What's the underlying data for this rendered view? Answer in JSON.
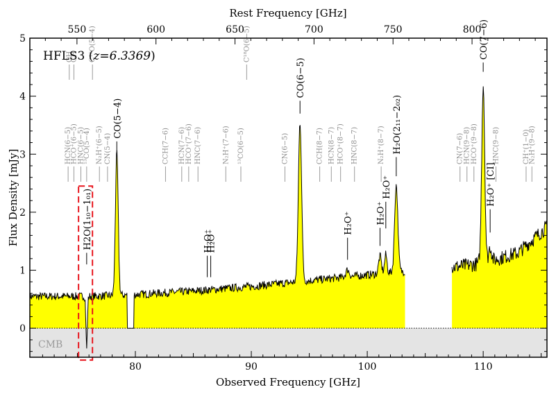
{
  "chart_data": {
    "type": "line",
    "title": "HFLS3 (z=6.3369)",
    "title_name": "HFLS3",
    "title_z": "z=6.3369",
    "xlabel": "Observed Frequency [GHz]",
    "ylabel": "Flux Density [mJy]",
    "x2label": "Rest Frequency [GHz]",
    "xlim": [
      70.9,
      115.5
    ],
    "ylim": [
      -0.5,
      5
    ],
    "redshift": 6.3369,
    "x_ticks": [
      80,
      90,
      100,
      110
    ],
    "y_ticks": [
      0,
      1,
      2,
      3,
      4,
      5
    ],
    "rest_ticks": [
      550,
      600,
      650,
      700,
      750,
      800
    ],
    "cmb_label": "CMB",
    "gap": [
      103.3,
      107.3
    ],
    "fill_color": "#ffff00",
    "cmb_color": "#e4e4e4",
    "highlight_color": "#e8141c",
    "highlight_box": {
      "x": [
        75.1,
        76.3
      ],
      "y": [
        -0.55,
        2.45
      ]
    },
    "continuum": {
      "x": [
        71.0,
        76.0,
        79.0,
        80.0,
        85.0,
        90.0,
        92.0,
        95.0,
        100.0,
        103.2,
        107.3,
        110.0,
        113.0,
        115.5
      ],
      "y": [
        0.55,
        0.55,
        0.57,
        0.58,
        0.64,
        0.72,
        0.76,
        0.82,
        0.92,
        0.98,
        1.05,
        1.12,
        1.3,
        1.75
      ]
    },
    "noise": 0.07,
    "peaks": [
      {
        "label": "CO(5-4)",
        "center": 78.4,
        "width": 0.12,
        "amp": 2.45
      },
      {
        "label": "CO(6-5)",
        "center": 94.2,
        "width": 0.14,
        "amp": 2.75
      },
      {
        "label": "H2O+",
        "center": 98.3,
        "width": 0.15,
        "amp": 0.12
      },
      {
        "label": "H2O+",
        "center": 101.1,
        "width": 0.12,
        "amp": 0.3
      },
      {
        "label": "H2O+",
        "center": 101.6,
        "width": 0.1,
        "amp": 0.32
      },
      {
        "label": "H2O(211-202)",
        "center": 102.5,
        "width": 0.14,
        "amp": 1.5
      },
      {
        "label": "CO(7-6)",
        "center": 110.0,
        "width": 0.13,
        "amp": 3.1
      },
      {
        "label": "[CI]",
        "center": 110.6,
        "width": 0.12,
        "amp": 0.25
      },
      {
        "label": "H2O(110-101)",
        "center": 75.8,
        "width": 0.06,
        "amp": -0.9
      }
    ],
    "blank_regions": [
      [
        79.3,
        79.9
      ]
    ],
    "dark_lines": [
      {
        "x": 75.8,
        "label": "H2O(1₁₀−1₀₁)",
        "tip": 1.1,
        "top": 1.3
      },
      {
        "x": 78.4,
        "label": "CO(5−4)",
        "tip": 3.05,
        "top": 3.22
      },
      {
        "x": 86.2,
        "label": "H₂O⁺",
        "tip": 0.88,
        "top": 1.25
      },
      {
        "x": 86.5,
        "label": "H₂O⁺",
        "tip": 0.88,
        "top": 1.25
      },
      {
        "x": 94.2,
        "label": "CO(6−5)",
        "tip": 3.7,
        "top": 3.92
      },
      {
        "x": 98.3,
        "label": "H₂O⁺",
        "tip": 1.18,
        "top": 1.56
      },
      {
        "x": 101.1,
        "label": "H₂O⁺",
        "tip": 1.42,
        "top": 1.73
      },
      {
        "x": 101.6,
        "label": "H₂O⁺",
        "tip": 1.72,
        "top": 2.18
      },
      {
        "x": 102.5,
        "label": "H₂O(2₁₁−2₀₂)",
        "tip": 2.62,
        "top": 2.95
      },
      {
        "x": 110.0,
        "label": "CO(7−6)",
        "tip": 4.42,
        "top": 4.58
      },
      {
        "x": 110.6,
        "label": "H₂O⁺ [CI]",
        "tip": 1.65,
        "top": 2.05
      }
    ],
    "grey_lines": [
      {
        "x": 74.2,
        "label": "HCN(6−5)"
      },
      {
        "x": 74.7,
        "label": "HCO⁺(6−5)"
      },
      {
        "x": 75.3,
        "label": "HNC(6−5)"
      },
      {
        "x": 75.8,
        "label": "¹³CO(5−4)"
      },
      {
        "x": 76.9,
        "label": "N₂H⁺(6−5)"
      },
      {
        "x": 77.6,
        "label": "CN(5−4)"
      },
      {
        "x": 74.3,
        "label": "CH",
        "top_group": true
      },
      {
        "x": 74.7,
        "label": "CH",
        "top_group": true
      },
      {
        "x": 76.3,
        "label": "C¹⁸O(5−4)",
        "top_group": true
      },
      {
        "x": 82.6,
        "label": "CCH(7−6)"
      },
      {
        "x": 84.0,
        "label": "HCN(7−6)"
      },
      {
        "x": 84.6,
        "label": "HCO⁺(7−6)"
      },
      {
        "x": 85.4,
        "label": "HNC(7−6)"
      },
      {
        "x": 87.8,
        "label": "N₂H⁺(7−6)"
      },
      {
        "x": 89.1,
        "label": "¹³CO(6−5)"
      },
      {
        "x": 89.6,
        "label": "C¹⁸O(6−5)",
        "top_group": true
      },
      {
        "x": 92.9,
        "label": "CN(6−5)"
      },
      {
        "x": 95.9,
        "label": "CCH(8−7)"
      },
      {
        "x": 96.9,
        "label": "HCN(8−7)"
      },
      {
        "x": 97.7,
        "label": "HCO⁺(8−7)"
      },
      {
        "x": 98.9,
        "label": "HNC(8−7)"
      },
      {
        "x": 101.2,
        "label": "N₂H⁺(8−7)"
      },
      {
        "x": 108.0,
        "label": "CN(7−6)"
      },
      {
        "x": 108.6,
        "label": "HCN(9−8)"
      },
      {
        "x": 109.2,
        "label": "HCO⁺(9−8)"
      },
      {
        "x": 111.1,
        "label": "HNC(9−8)"
      },
      {
        "x": 113.7,
        "label": "CH⁺(1−0)"
      },
      {
        "x": 114.2,
        "label": "N₂H⁺(9−8)"
      }
    ]
  }
}
